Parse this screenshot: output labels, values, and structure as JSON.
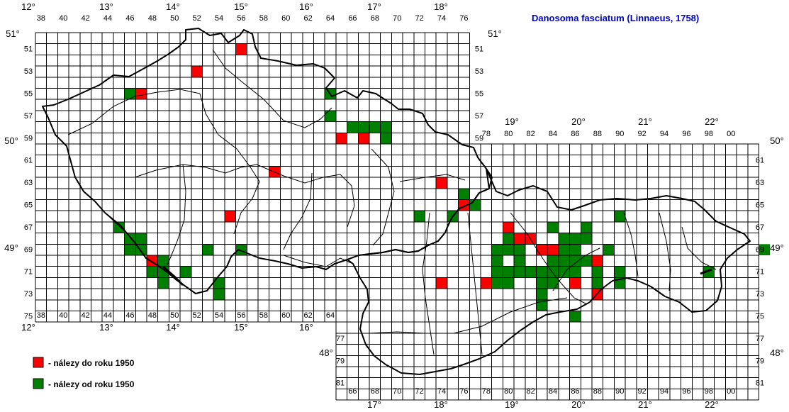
{
  "title": "Danosoma fasciatum (Linnaeus, 1758)",
  "legend": [
    {
      "label": "- nálezy do roku 1950",
      "color": "#ff0000"
    },
    {
      "label": "- nálezy od roku 1950",
      "color": "#008000"
    }
  ],
  "colors": {
    "red": "#ff0000",
    "green": "#008000",
    "title": "#0000cc"
  },
  "cz": {
    "cols_top": [
      "38",
      "40",
      "42",
      "44",
      "46",
      "48",
      "50",
      "52",
      "54",
      "56",
      "58",
      "60",
      "62",
      "64",
      "66",
      "68",
      "70",
      "72",
      "74",
      "76"
    ],
    "cols_bottom": [
      "38",
      "40",
      "42",
      "44",
      "46",
      "48",
      "50",
      "52",
      "54",
      "56",
      "58",
      "60",
      "62",
      "64"
    ],
    "rows_left": [
      "51",
      "53",
      "55",
      "57",
      "59",
      "61",
      "63",
      "65",
      "67",
      "69",
      "71",
      "73",
      "75"
    ],
    "rows_right": [
      "51",
      "53",
      "55",
      "57",
      "59"
    ],
    "lon_top": [
      "12°",
      "13°",
      "14°",
      "15°",
      "16°",
      "17°",
      "18°"
    ],
    "lon_bottom": [
      "12°",
      "13°",
      "14°",
      "15°",
      "16°"
    ],
    "lat_left": [
      "51°",
      "50°",
      "49°"
    ],
    "lat_right": [
      "51°"
    ]
  },
  "sk": {
    "cols_top": [
      "78",
      "80",
      "82",
      "84",
      "86",
      "88",
      "90",
      "92",
      "94",
      "96",
      "98",
      "00"
    ],
    "cols_bottom": [
      "66",
      "68",
      "70",
      "72",
      "74",
      "76",
      "78",
      "80",
      "82",
      "84",
      "86",
      "88",
      "90",
      "92",
      "94",
      "96",
      "98",
      "00"
    ],
    "rows_left": [
      "77",
      "79",
      "81"
    ],
    "rows_right": [
      "61",
      "63",
      "65",
      "67",
      "69",
      "71",
      "73",
      "75",
      "77",
      "79",
      "81"
    ],
    "lon_top": [
      "19°",
      "20°",
      "21°",
      "22°"
    ],
    "lon_bottom": [
      "17°",
      "18°",
      "19°",
      "20°",
      "21°",
      "22°"
    ],
    "lat_left": [
      "48°"
    ],
    "lat_right": [
      "50°",
      "49°",
      "48°"
    ]
  },
  "records": {
    "before_1950": [
      [
        56,
        51
      ],
      [
        52,
        53
      ],
      [
        47,
        55
      ],
      [
        65,
        59
      ],
      [
        67,
        59
      ],
      [
        59,
        62
      ],
      [
        74,
        63
      ],
      [
        76,
        65
      ],
      [
        55,
        66
      ],
      [
        80,
        67
      ],
      [
        81,
        68
      ],
      [
        82,
        68
      ],
      [
        83,
        69
      ],
      [
        84,
        69
      ],
      [
        88,
        70
      ],
      [
        48,
        70
      ],
      [
        83,
        71
      ],
      [
        74,
        72
      ],
      [
        78,
        72
      ],
      [
        86,
        72
      ],
      [
        88,
        73
      ]
    ],
    "since_1950": [
      [
        64,
        55
      ],
      [
        46,
        55
      ],
      [
        64,
        57
      ],
      [
        66,
        58
      ],
      [
        67,
        58
      ],
      [
        68,
        58
      ],
      [
        69,
        58
      ],
      [
        69,
        59
      ],
      [
        76,
        64
      ],
      [
        77,
        65
      ],
      [
        72,
        66
      ],
      [
        75,
        66
      ],
      [
        90,
        66
      ],
      [
        45,
        67
      ],
      [
        84,
        67
      ],
      [
        87,
        67
      ],
      [
        46,
        68
      ],
      [
        47,
        68
      ],
      [
        80,
        68
      ],
      [
        85,
        68
      ],
      [
        86,
        68
      ],
      [
        87,
        68
      ],
      [
        46,
        69
      ],
      [
        47,
        69
      ],
      [
        53,
        69
      ],
      [
        56,
        69
      ],
      [
        79,
        69
      ],
      [
        80,
        69
      ],
      [
        81,
        69
      ],
      [
        85,
        69
      ],
      [
        86,
        69
      ],
      [
        89,
        69
      ],
      [
        103,
        69
      ],
      [
        49,
        70
      ],
      [
        79,
        70
      ],
      [
        81,
        70
      ],
      [
        84,
        70
      ],
      [
        85,
        70
      ],
      [
        86,
        70
      ],
      [
        87,
        70
      ],
      [
        48,
        71
      ],
      [
        49,
        71
      ],
      [
        51,
        71
      ],
      [
        79,
        71
      ],
      [
        80,
        71
      ],
      [
        81,
        71
      ],
      [
        82,
        71
      ],
      [
        83,
        71
      ],
      [
        84,
        71
      ],
      [
        85,
        71
      ],
      [
        86,
        71
      ],
      [
        88,
        71
      ],
      [
        90,
        71
      ],
      [
        98,
        71
      ],
      [
        49,
        72
      ],
      [
        54,
        72
      ],
      [
        79,
        72
      ],
      [
        80,
        72
      ],
      [
        83,
        72
      ],
      [
        84,
        72
      ],
      [
        88,
        72
      ],
      [
        90,
        72
      ],
      [
        54,
        73
      ],
      [
        83,
        73
      ],
      [
        83,
        74
      ],
      [
        86,
        75
      ]
    ]
  }
}
